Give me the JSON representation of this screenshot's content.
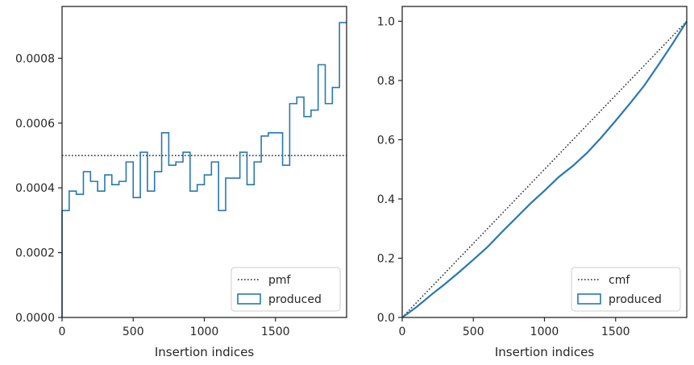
{
  "chart_data": [
    {
      "type": "step",
      "xlabel": "Insertion indices",
      "ylabel": "",
      "xlim": [
        0,
        2000
      ],
      "ylim": [
        0,
        0.00096
      ],
      "xticks": [
        "0",
        "500",
        "1000",
        "1500"
      ],
      "xtick_values": [
        0,
        500,
        1000,
        1500
      ],
      "yticks": [
        "0.0000",
        "0.0002",
        "0.0004",
        "0.0006",
        "0.0008"
      ],
      "ytick_values": [
        0,
        0.0002,
        0.0004,
        0.0006,
        0.0008
      ],
      "legend_position": "lower-right",
      "series": [
        {
          "name": "pmf",
          "style": "dotted",
          "color": "#262626",
          "x": [
            0,
            2000
          ],
          "y": [
            0.0005,
            0.0005
          ]
        },
        {
          "name": "produced",
          "style": "step",
          "color": "#2878b0",
          "bin_width": 50,
          "bin_starts": [
            0,
            50,
            100,
            150,
            200,
            250,
            300,
            350,
            400,
            450,
            500,
            550,
            600,
            650,
            700,
            750,
            800,
            850,
            900,
            950,
            1000,
            1050,
            1100,
            1150,
            1200,
            1250,
            1300,
            1350,
            1400,
            1450,
            1500,
            1550,
            1600,
            1650,
            1700,
            1750,
            1800,
            1850,
            1900,
            1950
          ],
          "values": [
            0.00033,
            0.00039,
            0.00038,
            0.00045,
            0.00042,
            0.00039,
            0.00044,
            0.00041,
            0.00042,
            0.00048,
            0.00037,
            0.00051,
            0.00039,
            0.00045,
            0.00057,
            0.00047,
            0.00048,
            0.00051,
            0.00039,
            0.00041,
            0.00044,
            0.00048,
            0.00033,
            0.00043,
            0.00043,
            0.00051,
            0.00041,
            0.00048,
            0.00056,
            0.00057,
            0.00057,
            0.00047,
            0.00066,
            0.00068,
            0.00062,
            0.00064,
            0.00078,
            0.00066,
            0.00071,
            0.00091
          ]
        }
      ]
    },
    {
      "type": "line",
      "xlabel": "Insertion indices",
      "ylabel": "",
      "xlim": [
        0,
        2000
      ],
      "ylim": [
        0,
        1.05
      ],
      "xticks": [
        "0",
        "500",
        "1000",
        "1500"
      ],
      "xtick_values": [
        0,
        500,
        1000,
        1500
      ],
      "yticks": [
        "0.0",
        "0.2",
        "0.4",
        "0.6",
        "0.8",
        "1.0"
      ],
      "ytick_values": [
        0,
        0.2,
        0.4,
        0.6,
        0.8,
        1.0
      ],
      "legend_position": "lower-right",
      "series": [
        {
          "name": "cmf",
          "style": "dotted",
          "color": "#262626",
          "x": [
            0,
            2000
          ],
          "y": [
            0,
            1.0
          ]
        },
        {
          "name": "produced",
          "style": "solid",
          "color": "#2878b0",
          "x": [
            0,
            100,
            200,
            300,
            400,
            500,
            600,
            700,
            800,
            900,
            1000,
            1100,
            1200,
            1300,
            1400,
            1500,
            1600,
            1700,
            1800,
            1900,
            2000
          ],
          "y": [
            0,
            0.035,
            0.075,
            0.113,
            0.153,
            0.195,
            0.238,
            0.288,
            0.336,
            0.384,
            0.428,
            0.474,
            0.512,
            0.556,
            0.608,
            0.664,
            0.722,
            0.782,
            0.852,
            0.924,
            1.0
          ]
        }
      ]
    }
  ]
}
